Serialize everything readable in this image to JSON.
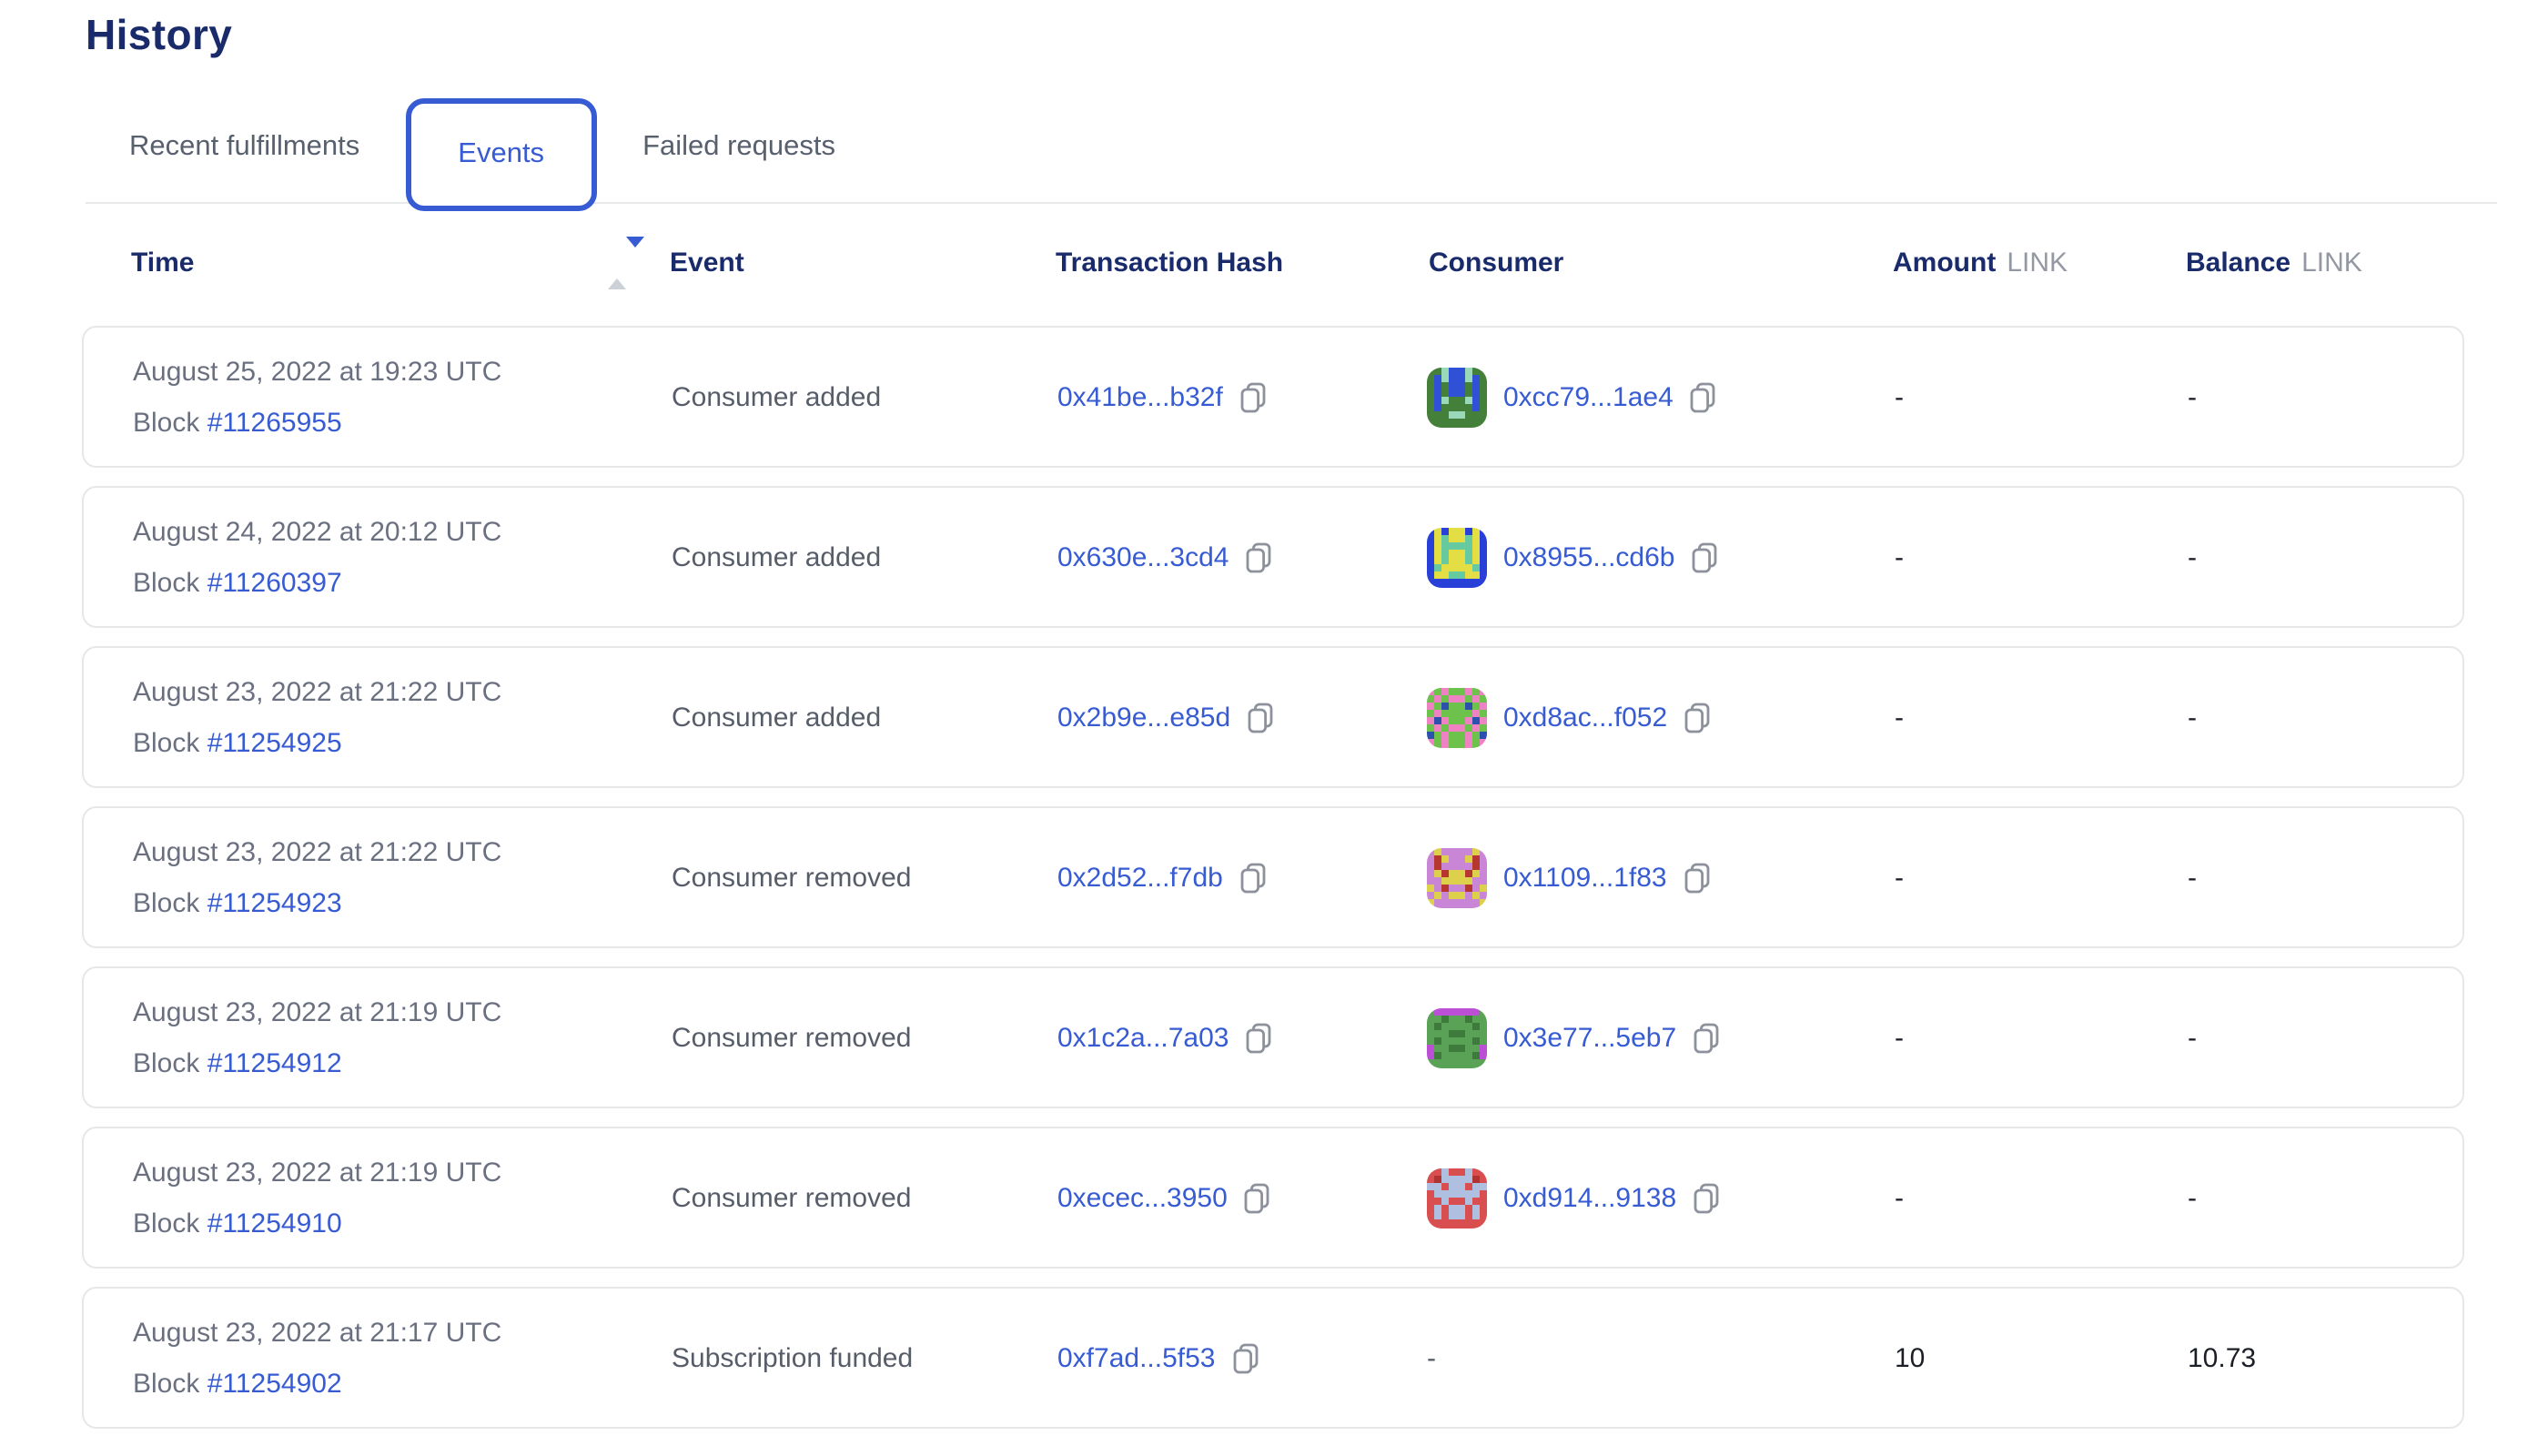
{
  "page": {
    "title": "History"
  },
  "tabs": [
    {
      "label": "Recent fulfillments",
      "active": false
    },
    {
      "label": "Events",
      "active": true
    },
    {
      "label": "Failed requests",
      "active": false
    }
  ],
  "table": {
    "columns": {
      "time": "Time",
      "event": "Event",
      "tx": "Transaction Hash",
      "consumer": "Consumer",
      "amount": "Amount",
      "balance": "Balance",
      "unit": "LINK"
    },
    "sort": {
      "column": "Time",
      "direction": "descending"
    },
    "rows": [
      {
        "date": "August 25, 2022 at 19:23 UTC",
        "block_label": "Block",
        "block": "#11265955",
        "event": "Consumer added",
        "tx": "0x41be...b32f",
        "consumer": "0xcc79...1ae4",
        "amount": "-",
        "balance": "-",
        "avatar": {
          "palette": [
            "#44803a",
            "#3050d5",
            "#99d8b8"
          ],
          "grid": [
            "00211200",
            "01211210",
            "01011010",
            "01011010",
            "01200210",
            "01000010",
            "00022000",
            "00000000"
          ]
        }
      },
      {
        "date": "August 24, 2022 at 20:12 UTC",
        "block_label": "Block",
        "block": "#11260397",
        "event": "Consumer added",
        "tx": "0x630e...3cd4",
        "consumer": "0x8955...cd6b",
        "amount": "-",
        "balance": "-",
        "avatar": {
          "palette": [
            "#2840d8",
            "#e2de44",
            "#66c9a0"
          ],
          "grid": [
            "01011010",
            "01211210",
            "01222210",
            "01211210",
            "01211210",
            "02111120",
            "01122110",
            "00000000"
          ]
        }
      },
      {
        "date": "August 23, 2022 at 21:22 UTC",
        "block_label": "Block",
        "block": "#11254925",
        "event": "Consumer added",
        "tx": "0x2b9e...e85d",
        "consumer": "0xd8ac...f052",
        "amount": "-",
        "balance": "-",
        "avatar": {
          "palette": [
            "#ef82c3",
            "#6cc24a",
            "#2d4fae"
          ],
          "grid": [
            "01011010",
            "10100101",
            "01211210",
            "10111101",
            "02011020",
            "10100101",
            "21011012",
            "01011010"
          ]
        }
      },
      {
        "date": "August 23, 2022 at 21:22 UTC",
        "block_label": "Block",
        "block": "#11254923",
        "event": "Consumer removed",
        "tx": "0x2d52...f7db",
        "consumer": "0x1109...1f83",
        "amount": "-",
        "balance": "-",
        "avatar": {
          "palette": [
            "#ca86d6",
            "#ddd14b",
            "#b5372f"
          ],
          "grid": [
            "01000010",
            "02100120",
            "02000020",
            "01211210",
            "00111100",
            "10200201",
            "01011010",
            "10000001"
          ]
        }
      },
      {
        "date": "August 23, 2022 at 21:19 UTC",
        "block_label": "Block",
        "block": "#11254912",
        "event": "Consumer removed",
        "tx": "0x1c2a...7a03",
        "consumer": "0x3e77...5eb7",
        "amount": "-",
        "balance": "-",
        "avatar": {
          "palette": [
            "#5aa255",
            "#bb4fd6",
            "#3e7a3c"
          ],
          "grid": [
            "01111110",
            "00200200",
            "02000020",
            "00022000",
            "02000020",
            "10022001",
            "12000021",
            "00000000"
          ]
        }
      },
      {
        "date": "August 23, 2022 at 21:19 UTC",
        "block_label": "Block",
        "block": "#11254910",
        "event": "Consumer removed",
        "tx": "0xecec...3950",
        "consumer": "0xd914...9138",
        "amount": "-",
        "balance": "-",
        "avatar": {
          "palette": [
            "#d94f4f",
            "#aebfe0",
            "#b03333"
          ],
          "grid": [
            "00100100",
            "02111120",
            "11011011",
            "01111110",
            "00100100",
            "01011010",
            "01011010",
            "00000000"
          ]
        }
      },
      {
        "date": "August 23, 2022 at 21:17 UTC",
        "block_label": "Block",
        "block": "#11254902",
        "event": "Subscription funded",
        "tx": "0xf7ad...5f53",
        "consumer": "-",
        "amount": "10",
        "balance": "10.73",
        "avatar": null
      }
    ]
  },
  "colors": {
    "accent": "#375bd2",
    "heading": "#1a2b6b",
    "muted_text": "#6a7080",
    "card_border": "#e6e7e9"
  }
}
